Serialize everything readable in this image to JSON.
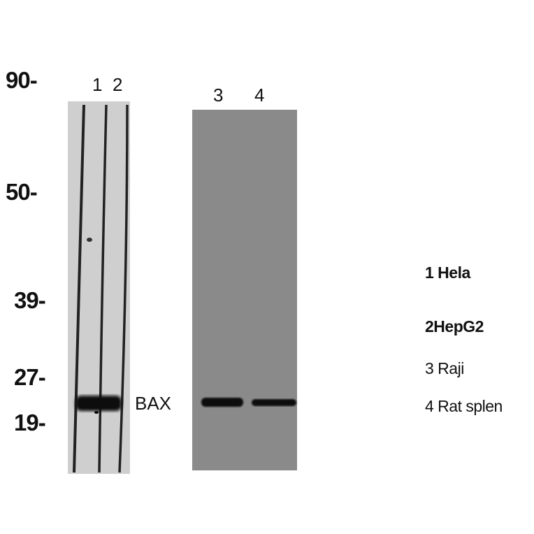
{
  "markers": [
    {
      "label": "90-"
    },
    {
      "label": "50-"
    },
    {
      "label": "39-"
    },
    {
      "label": "27-"
    },
    {
      "label": "19-"
    }
  ],
  "lanes": [
    "1",
    "2",
    "3",
    "4"
  ],
  "band_label": "BAX",
  "samples": [
    "1 Hela",
    "2HepG2",
    "3 Raji",
    "4 Rat splen"
  ],
  "colors": {
    "right_blot_bg": "#8a8a8a",
    "left_blot_bg": "#c9c9c9",
    "band": "#111111"
  }
}
